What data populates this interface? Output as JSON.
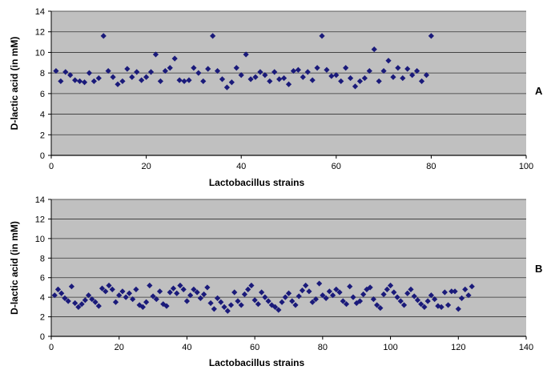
{
  "colors": {
    "plot_bg": "#c0c0c0",
    "marker": "#1a1a7a",
    "grid": "#333333",
    "page_bg": "#ffffff"
  },
  "chart_data": [
    {
      "type": "scatter",
      "panel_label": "A",
      "xlabel": "Lactobacillus strains",
      "ylabel": "D-lactic acid (in mM)",
      "xlim": [
        0,
        100
      ],
      "ylim": [
        0,
        14
      ],
      "xticks": [
        0,
        20,
        40,
        60,
        80,
        100
      ],
      "yticks": [
        0,
        2,
        4,
        6,
        8,
        10,
        12,
        14
      ],
      "grid": "horizontal",
      "marker": "diamond",
      "x": [
        1,
        2,
        3,
        4,
        5,
        6,
        7,
        8,
        9,
        10,
        11,
        12,
        13,
        14,
        15,
        16,
        17,
        18,
        19,
        20,
        21,
        22,
        23,
        24,
        25,
        26,
        27,
        28,
        29,
        30,
        31,
        32,
        33,
        34,
        35,
        36,
        37,
        38,
        39,
        40,
        41,
        42,
        43,
        44,
        45,
        46,
        47,
        48,
        49,
        50,
        51,
        52,
        53,
        54,
        55,
        56,
        57,
        58,
        59,
        60,
        61,
        62,
        63,
        64,
        65,
        66,
        67,
        68,
        69,
        70,
        71,
        72,
        73,
        74,
        75,
        76,
        77,
        78,
        79,
        80
      ],
      "y": [
        8.2,
        7.2,
        8.1,
        7.8,
        7.3,
        7.2,
        7.1,
        8.0,
        7.2,
        7.5,
        11.6,
        8.2,
        7.6,
        6.9,
        7.2,
        8.4,
        7.6,
        8.1,
        7.3,
        7.6,
        8.1,
        9.8,
        7.2,
        8.2,
        8.5,
        9.4,
        7.3,
        7.2,
        7.3,
        8.5,
        8.0,
        7.2,
        8.4,
        11.6,
        8.2,
        7.4,
        6.6,
        7.1,
        8.5,
        7.8,
        9.8,
        7.4,
        7.6,
        8.1,
        7.8,
        7.2,
        8.1,
        7.4,
        7.5,
        6.9,
        8.2,
        8.3,
        7.6,
        8.1,
        7.3,
        8.5,
        11.6,
        8.3,
        7.7,
        7.8,
        7.2,
        8.5,
        7.5,
        6.7,
        7.2,
        7.5,
        8.2,
        10.3,
        7.2,
        8.2,
        9.2,
        7.6,
        8.5,
        7.5,
        8.4,
        7.8,
        8.2,
        7.2,
        7.8,
        11.6
      ]
    },
    {
      "type": "scatter",
      "panel_label": "B",
      "xlabel": "Lactobacillus strains",
      "ylabel": "D-lactic acid (in mM)",
      "xlim": [
        0,
        140
      ],
      "ylim": [
        0,
        14
      ],
      "xticks": [
        0,
        20,
        40,
        60,
        80,
        100,
        120,
        140
      ],
      "yticks": [
        0,
        2,
        4,
        6,
        8,
        10,
        12,
        14
      ],
      "grid": "horizontal",
      "marker": "diamond",
      "x": [
        1,
        2,
        3,
        4,
        5,
        6,
        7,
        8,
        9,
        10,
        11,
        12,
        13,
        14,
        15,
        16,
        17,
        18,
        19,
        20,
        21,
        22,
        23,
        24,
        25,
        26,
        27,
        28,
        29,
        30,
        31,
        32,
        33,
        34,
        35,
        36,
        37,
        38,
        39,
        40,
        41,
        42,
        43,
        44,
        45,
        46,
        47,
        48,
        49,
        50,
        51,
        52,
        53,
        54,
        55,
        56,
        57,
        58,
        59,
        60,
        61,
        62,
        63,
        64,
        65,
        66,
        67,
        68,
        69,
        70,
        71,
        72,
        73,
        74,
        75,
        76,
        77,
        78,
        79,
        80,
        81,
        82,
        83,
        84,
        85,
        86,
        87,
        88,
        89,
        90,
        91,
        92,
        93,
        94,
        95,
        96,
        97,
        98,
        99,
        100,
        101,
        102,
        103,
        104,
        105,
        106,
        107,
        108,
        109,
        110,
        111,
        112,
        113,
        114,
        115,
        116,
        117,
        118,
        119,
        120,
        121,
        122,
        123,
        124
      ],
      "y": [
        4.2,
        4.8,
        4.4,
        3.9,
        3.6,
        5.1,
        3.4,
        3.0,
        3.3,
        3.7,
        4.2,
        3.8,
        3.5,
        3.1,
        4.9,
        4.6,
        5.2,
        4.8,
        3.5,
        4.2,
        4.6,
        4.0,
        4.4,
        3.8,
        4.8,
        3.2,
        3.0,
        3.5,
        5.2,
        4.1,
        3.8,
        4.6,
        3.3,
        3.1,
        4.5,
        4.9,
        4.4,
        5.2,
        4.8,
        3.6,
        4.2,
        4.8,
        4.5,
        3.9,
        4.3,
        5.0,
        3.4,
        2.8,
        3.9,
        3.5,
        3.0,
        2.6,
        3.2,
        4.5,
        3.6,
        3.2,
        4.3,
        4.8,
        5.2,
        3.7,
        3.3,
        4.5,
        4.0,
        3.6,
        3.2,
        3.0,
        2.7,
        3.5,
        4.0,
        4.4,
        3.6,
        3.2,
        4.1,
        4.7,
        5.2,
        4.6,
        3.5,
        3.8,
        5.4,
        4.2,
        3.9,
        4.6,
        4.2,
        4.8,
        4.5,
        3.6,
        3.3,
        5.1,
        4.0,
        3.4,
        3.6,
        4.3,
        4.8,
        5.0,
        3.8,
        3.2,
        2.9,
        4.3,
        4.8,
        5.2,
        4.5,
        4.0,
        3.6,
        3.2,
        4.4,
        4.8,
        4.1,
        3.7,
        3.3,
        3.0,
        3.6,
        4.2,
        3.8,
        3.1,
        3.0,
        4.5,
        3.2,
        4.6,
        4.6,
        2.8,
        3.9,
        4.8,
        4.2,
        5.1
      ]
    }
  ]
}
